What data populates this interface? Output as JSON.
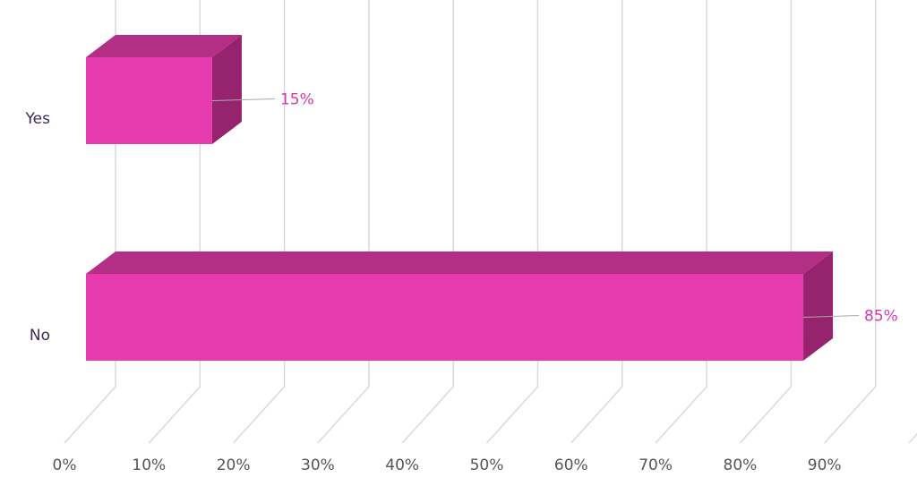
{
  "chart_data": {
    "type": "bar",
    "orientation": "horizontal",
    "three_d": true,
    "categories": [
      "Yes",
      "No"
    ],
    "values": [
      15,
      85
    ],
    "data_labels": [
      "15%",
      "85%"
    ],
    "x_ticks": [
      "0%",
      "10%",
      "20%",
      "30%",
      "40%",
      "50%",
      "60%",
      "70%",
      "80%",
      "90%"
    ],
    "xlim": [
      0,
      100
    ],
    "grid": true,
    "legend": "none",
    "colors": {
      "bar_front": "#e83aaf",
      "bar_top": "#b32f86",
      "bar_side": "#96236e",
      "label": "#d63aa8",
      "grid": "#d9d9d9",
      "category_text": "#3a2a5a",
      "tick_text": "#555555"
    }
  }
}
